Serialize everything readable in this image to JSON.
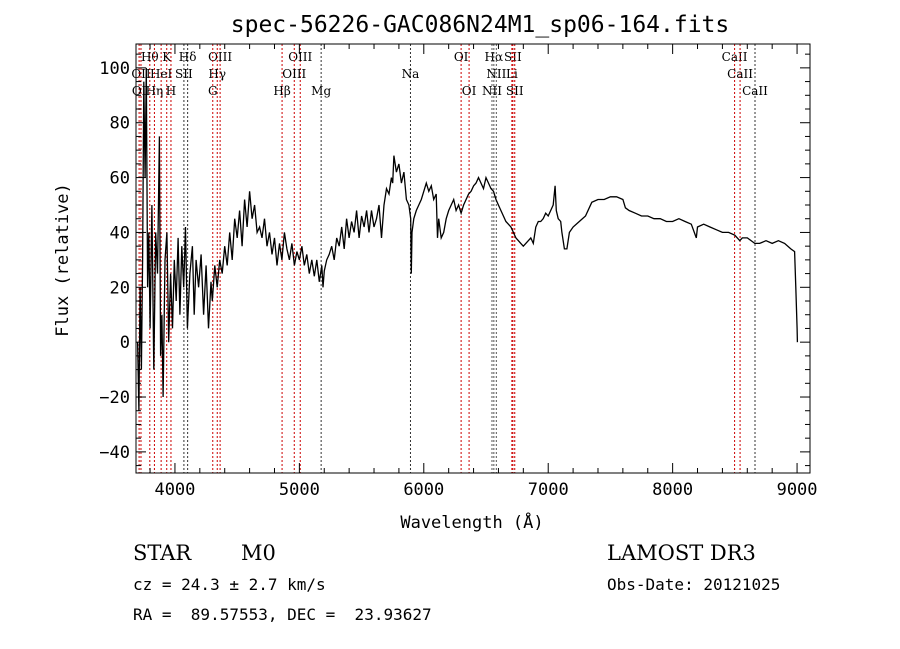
{
  "chart_data": {
    "type": "line",
    "title": "spec-56226-GAC086N24M1_sp06-164.fits",
    "xlabel": "Wavelength (Å)",
    "ylabel": "Flux (relative)",
    "xlim": [
      3687,
      9104
    ],
    "ylim": [
      -47.7,
      108.7
    ],
    "xticks": [
      4000,
      5000,
      6000,
      7000,
      8000,
      9000
    ],
    "yticks": [
      -40,
      -20,
      0,
      20,
      40,
      60,
      80,
      100
    ],
    "xtick_labels": [
      "4000",
      "5000",
      "6000",
      "7000",
      "8000",
      "9000"
    ],
    "ytick_labels": [
      "−40",
      "−20",
      "0",
      "20",
      "40",
      "60",
      "80",
      "100"
    ],
    "grid": false,
    "series": [
      {
        "name": "spectrum",
        "color": "#000000",
        "points": [
          [
            3700,
            0
          ],
          [
            3710,
            -25
          ],
          [
            3720,
            20
          ],
          [
            3730,
            -10
          ],
          [
            3740,
            30
          ],
          [
            3750,
            95
          ],
          [
            3760,
            60
          ],
          [
            3770,
            100
          ],
          [
            3780,
            20
          ],
          [
            3790,
            40
          ],
          [
            3800,
            5
          ],
          [
            3815,
            50
          ],
          [
            3830,
            -10
          ],
          [
            3845,
            40
          ],
          [
            3860,
            25
          ],
          [
            3875,
            75
          ],
          [
            3885,
            -5
          ],
          [
            3895,
            10
          ],
          [
            3905,
            -20
          ],
          [
            3920,
            30
          ],
          [
            3935,
            40
          ],
          [
            3950,
            0
          ],
          [
            3965,
            25
          ],
          [
            3980,
            5
          ],
          [
            3995,
            30
          ],
          [
            4010,
            15
          ],
          [
            4025,
            38
          ],
          [
            4040,
            10
          ],
          [
            4055,
            35
          ],
          [
            4070,
            20
          ],
          [
            4085,
            42
          ],
          [
            4100,
            5
          ],
          [
            4120,
            25
          ],
          [
            4140,
            35
          ],
          [
            4155,
            10
          ],
          [
            4170,
            30
          ],
          [
            4190,
            20
          ],
          [
            4210,
            32
          ],
          [
            4230,
            10
          ],
          [
            4250,
            28
          ],
          [
            4270,
            5
          ],
          [
            4290,
            22
          ],
          [
            4300,
            15
          ],
          [
            4320,
            28
          ],
          [
            4340,
            20
          ],
          [
            4360,
            30
          ],
          [
            4380,
            25
          ],
          [
            4400,
            35
          ],
          [
            4420,
            28
          ],
          [
            4440,
            40
          ],
          [
            4460,
            30
          ],
          [
            4480,
            45
          ],
          [
            4500,
            38
          ],
          [
            4520,
            48
          ],
          [
            4540,
            35
          ],
          [
            4560,
            52
          ],
          [
            4580,
            42
          ],
          [
            4600,
            55
          ],
          [
            4620,
            45
          ],
          [
            4640,
            50
          ],
          [
            4660,
            40
          ],
          [
            4680,
            42
          ],
          [
            4700,
            38
          ],
          [
            4720,
            45
          ],
          [
            4740,
            35
          ],
          [
            4760,
            40
          ],
          [
            4780,
            32
          ],
          [
            4800,
            38
          ],
          [
            4820,
            28
          ],
          [
            4840,
            36
          ],
          [
            4860,
            30
          ],
          [
            4880,
            40
          ],
          [
            4900,
            34
          ],
          [
            4920,
            30
          ],
          [
            4940,
            36
          ],
          [
            4960,
            28
          ],
          [
            4980,
            33
          ],
          [
            5000,
            30
          ],
          [
            5020,
            35
          ],
          [
            5040,
            28
          ],
          [
            5060,
            32
          ],
          [
            5080,
            25
          ],
          [
            5100,
            30
          ],
          [
            5120,
            24
          ],
          [
            5140,
            30
          ],
          [
            5160,
            22
          ],
          [
            5180,
            28
          ],
          [
            5190,
            20
          ],
          [
            5200,
            26
          ],
          [
            5220,
            30
          ],
          [
            5240,
            32
          ],
          [
            5260,
            35
          ],
          [
            5280,
            30
          ],
          [
            5300,
            38
          ],
          [
            5320,
            35
          ],
          [
            5340,
            42
          ],
          [
            5360,
            34
          ],
          [
            5380,
            45
          ],
          [
            5400,
            38
          ],
          [
            5420,
            44
          ],
          [
            5440,
            40
          ],
          [
            5460,
            48
          ],
          [
            5480,
            38
          ],
          [
            5500,
            46
          ],
          [
            5520,
            42
          ],
          [
            5540,
            48
          ],
          [
            5560,
            40
          ],
          [
            5580,
            48
          ],
          [
            5600,
            42
          ],
          [
            5620,
            45
          ],
          [
            5640,
            50
          ],
          [
            5660,
            38
          ],
          [
            5680,
            50
          ],
          [
            5700,
            56
          ],
          [
            5720,
            54
          ],
          [
            5740,
            60
          ],
          [
            5750,
            58
          ],
          [
            5760,
            68
          ],
          [
            5780,
            62
          ],
          [
            5800,
            65
          ],
          [
            5820,
            58
          ],
          [
            5840,
            62
          ],
          [
            5860,
            52
          ],
          [
            5880,
            50
          ],
          [
            5895,
            45
          ],
          [
            5900,
            25
          ],
          [
            5905,
            40
          ],
          [
            5920,
            45
          ],
          [
            5940,
            48
          ],
          [
            5960,
            50
          ],
          [
            5980,
            52
          ],
          [
            6000,
            55
          ],
          [
            6020,
            58
          ],
          [
            6040,
            55
          ],
          [
            6060,
            57
          ],
          [
            6080,
            52
          ],
          [
            6100,
            54
          ],
          [
            6110,
            38
          ],
          [
            6120,
            45
          ],
          [
            6140,
            38
          ],
          [
            6160,
            40
          ],
          [
            6180,
            45
          ],
          [
            6200,
            48
          ],
          [
            6220,
            50
          ],
          [
            6240,
            52
          ],
          [
            6260,
            48
          ],
          [
            6280,
            50
          ],
          [
            6300,
            47
          ],
          [
            6320,
            50
          ],
          [
            6340,
            52
          ],
          [
            6360,
            54
          ],
          [
            6380,
            55
          ],
          [
            6400,
            57
          ],
          [
            6420,
            58
          ],
          [
            6440,
            60
          ],
          [
            6460,
            58
          ],
          [
            6480,
            56
          ],
          [
            6500,
            60
          ],
          [
            6520,
            58
          ],
          [
            6540,
            56
          ],
          [
            6560,
            55
          ],
          [
            6580,
            52
          ],
          [
            6600,
            50
          ],
          [
            6620,
            48
          ],
          [
            6640,
            46
          ],
          [
            6660,
            44
          ],
          [
            6680,
            43
          ],
          [
            6700,
            42
          ],
          [
            6720,
            40
          ],
          [
            6740,
            38
          ],
          [
            6760,
            37
          ],
          [
            6780,
            36
          ],
          [
            6800,
            35
          ],
          [
            6820,
            36
          ],
          [
            6840,
            37
          ],
          [
            6860,
            38
          ],
          [
            6880,
            36
          ],
          [
            6900,
            42
          ],
          [
            6920,
            44
          ],
          [
            6940,
            44
          ],
          [
            6960,
            45
          ],
          [
            6980,
            47
          ],
          [
            7000,
            46
          ],
          [
            7020,
            48
          ],
          [
            7040,
            50
          ],
          [
            7055,
            57
          ],
          [
            7065,
            48
          ],
          [
            7080,
            45
          ],
          [
            7100,
            44
          ],
          [
            7110,
            40
          ],
          [
            7130,
            34
          ],
          [
            7150,
            34
          ],
          [
            7170,
            40
          ],
          [
            7200,
            42
          ],
          [
            7250,
            44
          ],
          [
            7300,
            46
          ],
          [
            7350,
            51
          ],
          [
            7400,
            52
          ],
          [
            7450,
            52
          ],
          [
            7500,
            53
          ],
          [
            7550,
            53
          ],
          [
            7600,
            52
          ],
          [
            7620,
            49
          ],
          [
            7650,
            48
          ],
          [
            7700,
            47
          ],
          [
            7750,
            46
          ],
          [
            7800,
            46
          ],
          [
            7850,
            45
          ],
          [
            7900,
            45
          ],
          [
            7950,
            44
          ],
          [
            8000,
            44
          ],
          [
            8050,
            45
          ],
          [
            8100,
            44
          ],
          [
            8150,
            43
          ],
          [
            8190,
            38
          ],
          [
            8200,
            42
          ],
          [
            8250,
            43
          ],
          [
            8300,
            42
          ],
          [
            8350,
            41
          ],
          [
            8400,
            40
          ],
          [
            8450,
            40
          ],
          [
            8500,
            39
          ],
          [
            8540,
            37
          ],
          [
            8560,
            38
          ],
          [
            8600,
            38
          ],
          [
            8660,
            36
          ],
          [
            8700,
            36
          ],
          [
            8750,
            37
          ],
          [
            8800,
            36
          ],
          [
            8850,
            37
          ],
          [
            8900,
            36
          ],
          [
            8950,
            34
          ],
          [
            8980,
            33
          ],
          [
            8990,
            20
          ],
          [
            9000,
            5
          ],
          [
            9003,
            0
          ]
        ]
      }
    ],
    "line_markers": [
      {
        "label": "Hθ",
        "wavelength": 3798,
        "row": 1,
        "color": "#cc0000"
      },
      {
        "label": "K",
        "wavelength": 3934,
        "row": 1,
        "color": "#cc0000"
      },
      {
        "label": "Hδ",
        "wavelength": 4102,
        "row": 1,
        "color": "#333333"
      },
      {
        "label": "OIII",
        "wavelength": 4363,
        "row": 1,
        "color": "#cc0000"
      },
      {
        "label": "OIII",
        "wavelength": 5007,
        "row": 1,
        "color": "#cc0000"
      },
      {
        "label": "OI",
        "wavelength": 6300,
        "row": 1,
        "color": "#cc0000"
      },
      {
        "label": "Hα",
        "wavelength": 6563,
        "row": 1,
        "color": "#555555"
      },
      {
        "label": "SII",
        "wavelength": 6716,
        "row": 1,
        "color": "#cc0000"
      },
      {
        "label": "CaII",
        "wavelength": 8498,
        "row": 1,
        "color": "#cc0000"
      },
      {
        "label": "OII",
        "wavelength": 3727,
        "row": 2,
        "color": "#cc0000"
      },
      {
        "label": "HeI",
        "wavelength": 3889,
        "row": 2,
        "color": "#cc0000"
      },
      {
        "label": "SII",
        "wavelength": 4072,
        "row": 2,
        "color": "#333333"
      },
      {
        "label": "Hγ",
        "wavelength": 4340,
        "row": 2,
        "color": "#cc0000"
      },
      {
        "label": "OIII",
        "wavelength": 4959,
        "row": 2,
        "color": "#cc0000"
      },
      {
        "label": "Na",
        "wavelength": 5893,
        "row": 2,
        "color": "#333333"
      },
      {
        "label": "NII",
        "wavelength": 6583,
        "row": 2,
        "color": "#555555"
      },
      {
        "label": "Li",
        "wavelength": 6708,
        "row": 2,
        "color": "#cc0000"
      },
      {
        "label": "CaII",
        "wavelength": 8542,
        "row": 2,
        "color": "#cc0000"
      },
      {
        "label": "OI",
        "wavelength": 3712,
        "row": 3,
        "color": "#cc0000"
      },
      {
        "label": "Hη",
        "wavelength": 3835,
        "row": 3,
        "color": "#cc0000"
      },
      {
        "label": "H",
        "wavelength": 3968,
        "row": 3,
        "color": "#cc0000"
      },
      {
        "label": "G",
        "wavelength": 4304,
        "row": 3,
        "color": "#cc0000"
      },
      {
        "label": "Hβ",
        "wavelength": 4861,
        "row": 3,
        "color": "#cc0000"
      },
      {
        "label": "Mg",
        "wavelength": 5175,
        "row": 3,
        "color": "#333333"
      },
      {
        "label": "OI",
        "wavelength": 6364,
        "row": 3,
        "color": "#cc0000"
      },
      {
        "label": "NII",
        "wavelength": 6548,
        "row": 3,
        "color": "#555555"
      },
      {
        "label": "SII",
        "wavelength": 6731,
        "row": 3,
        "color": "#cc0000"
      },
      {
        "label": "CaII",
        "wavelength": 8662,
        "row": 3,
        "color": "#333333"
      }
    ]
  },
  "info": {
    "class": "STAR",
    "subclass": "M0",
    "cz": "cz = 24.3 ± 2.7 km/s",
    "radec": "RA =  89.57553, DEC =  23.93627",
    "survey": "LAMOST DR3",
    "obs_date": "Obs-Date: 20121025"
  }
}
